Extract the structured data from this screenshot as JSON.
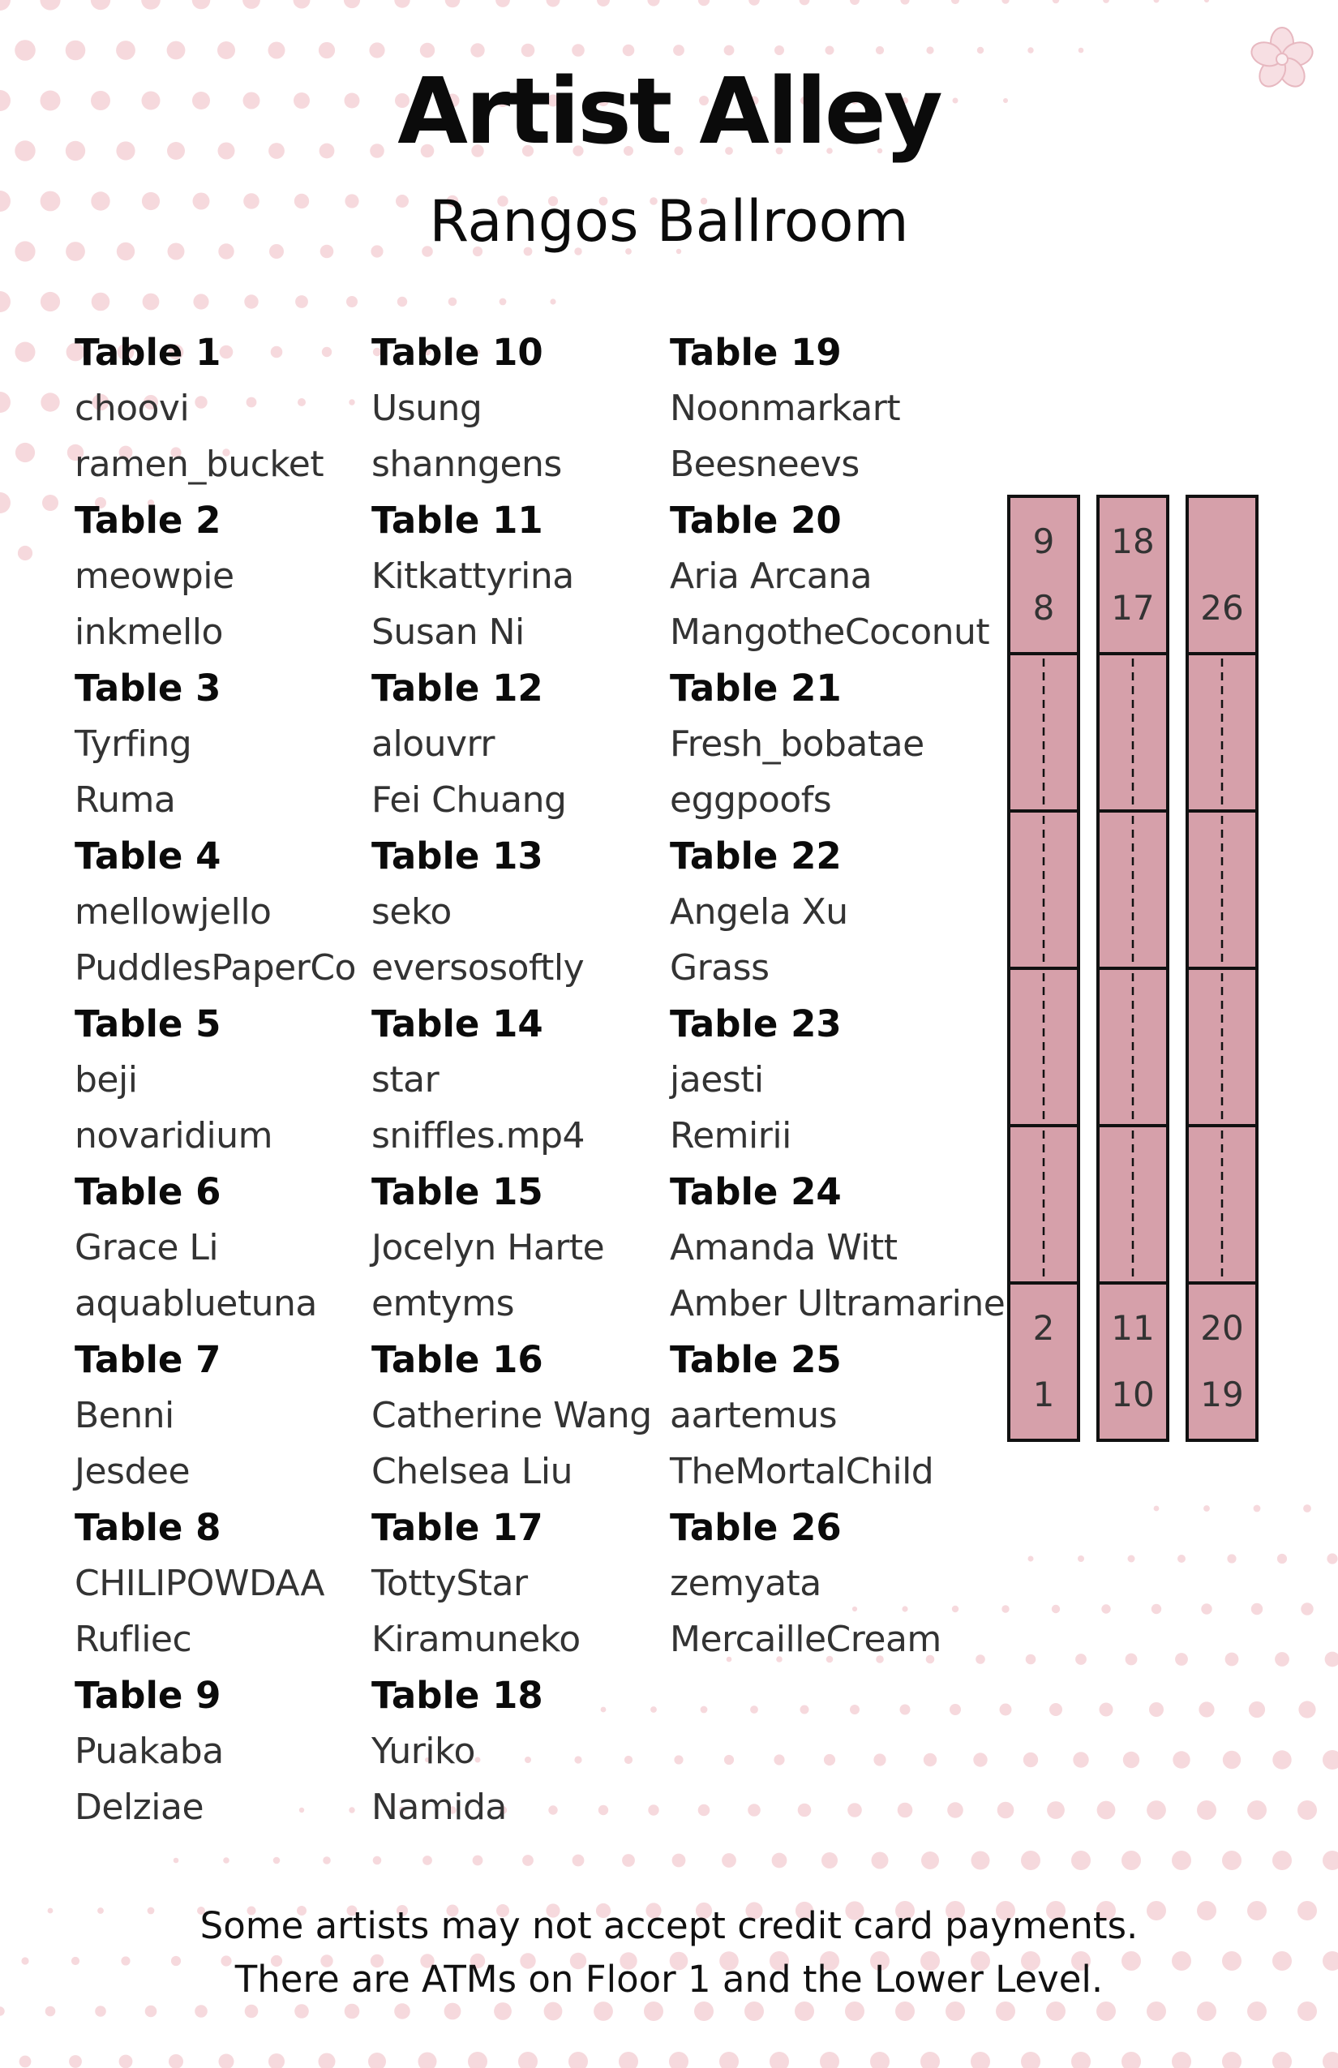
{
  "header": {
    "title": "Artist Alley",
    "subtitle": "Rangos Ballroom"
  },
  "colors": {
    "accent_pink": "#d6a0aa",
    "dot_pink": "#f6d9dd",
    "text": "#111111"
  },
  "decor": {
    "corner_icon": "cherry-blossom-icon"
  },
  "columns": [
    [
      {
        "table": "Table 1",
        "artists": [
          "choovi",
          "ramen_bucket"
        ]
      },
      {
        "table": "Table 2",
        "artists": [
          "meowpie",
          "inkmello"
        ]
      },
      {
        "table": "Table 3",
        "artists": [
          "Tyrfing",
          "Ruma"
        ]
      },
      {
        "table": "Table 4",
        "artists": [
          "mellowjello",
          "PuddlesPaperCo"
        ]
      },
      {
        "table": "Table 5",
        "artists": [
          "beji",
          "novaridium"
        ]
      },
      {
        "table": "Table 6",
        "artists": [
          "Grace Li",
          "aquabluetuna"
        ]
      },
      {
        "table": "Table 7",
        "artists": [
          "Benni",
          "Jesdee"
        ]
      },
      {
        "table": "Table 8",
        "artists": [
          "CHILIPOWDAA",
          "Rufliec"
        ]
      },
      {
        "table": "Table 9",
        "artists": [
          "Puakaba",
          "Delziae"
        ]
      }
    ],
    [
      {
        "table": "Table 10",
        "artists": [
          "Usung",
          "shanngens"
        ]
      },
      {
        "table": "Table 11",
        "artists": [
          "Kitkattyrina",
          "Susan Ni"
        ]
      },
      {
        "table": "Table 12",
        "artists": [
          "alouvrr",
          "Fei Chuang"
        ]
      },
      {
        "table": "Table 13",
        "artists": [
          "seko",
          "eversosoftly"
        ]
      },
      {
        "table": "Table 14",
        "artists": [
          "star",
          "sniffles.mp4"
        ]
      },
      {
        "table": "Table 15",
        "artists": [
          "Jocelyn Harte",
          "emtyms"
        ]
      },
      {
        "table": "Table 16",
        "artists": [
          "Catherine Wang",
          "Chelsea Liu"
        ]
      },
      {
        "table": "Table 17",
        "artists": [
          "TottyStar",
          "Kiramuneko"
        ]
      },
      {
        "table": "Table 18",
        "artists": [
          "Yuriko",
          "Namida"
        ]
      }
    ],
    [
      {
        "table": "Table 19",
        "artists": [
          "Noonmarkart",
          "Beesneevs"
        ]
      },
      {
        "table": "Table 20",
        "artists": [
          "Aria Arcana",
          "MangotheCoconut"
        ]
      },
      {
        "table": "Table 21",
        "artists": [
          "Fresh_bobatae",
          "eggpoofs"
        ]
      },
      {
        "table": "Table 22",
        "artists": [
          "Angela Xu",
          "Grass"
        ]
      },
      {
        "table": "Table 23",
        "artists": [
          "jaesti",
          "Remirii"
        ]
      },
      {
        "table": "Table 24",
        "artists": [
          "Amanda Witt",
          "Amber Ultramarine"
        ]
      },
      {
        "table": "Table 25",
        "artists": [
          "aartemus",
          "TheMortalChild"
        ]
      },
      {
        "table": "Table 26",
        "artists": [
          "zemyata",
          "MercailleCream"
        ]
      }
    ]
  ],
  "floor_map": {
    "rows": [
      {
        "top_numbers": [
          "9",
          "8"
        ],
        "bottom_numbers": [
          "2",
          "1"
        ]
      },
      {
        "top_numbers": [
          "18",
          "17"
        ],
        "bottom_numbers": [
          "11",
          "10"
        ]
      },
      {
        "top_numbers": [
          "26"
        ],
        "bottom_numbers": [
          "20",
          "19"
        ]
      }
    ],
    "middle_segments": 4
  },
  "footer": {
    "line1": "Some artists may not accept credit card payments.",
    "line2": "There are ATMs on Floor 1 and the Lower Level."
  }
}
